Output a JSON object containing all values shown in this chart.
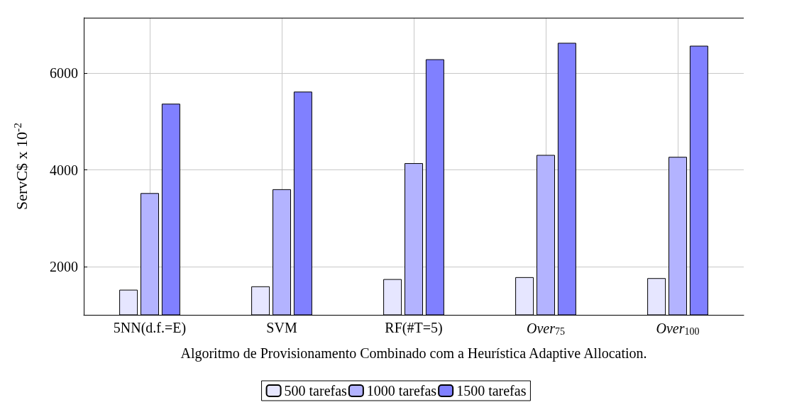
{
  "chart_data": {
    "type": "bar",
    "categories": [
      "5NN(d.f.=E)",
      "SVM",
      "RF(#T=5)",
      "Over$_{75}$",
      "Over$_{100}$"
    ],
    "series": [
      {
        "name": "500 tarefas",
        "color": "#e6e6ff",
        "values": [
          1520,
          1590,
          1740,
          1780,
          1760
        ]
      },
      {
        "name": "1000 tarefas",
        "color": "#b3b3ff",
        "values": [
          3520,
          3600,
          4140,
          4310,
          4270
        ]
      },
      {
        "name": "1500 tarefas",
        "color": "#8080ff",
        "values": [
          5370,
          5620,
          6290,
          6630,
          6570
        ]
      }
    ],
    "xlabel": "Algoritmo de Provisionamento Combinado com a Heurística Adaptive Allocation.",
    "ylabel": "ServC$ x 10$^{-2}$",
    "ylim": [
      1000,
      7150
    ],
    "yticks": [
      2000,
      4000,
      6000
    ],
    "grid": true,
    "legend": "bottom"
  }
}
